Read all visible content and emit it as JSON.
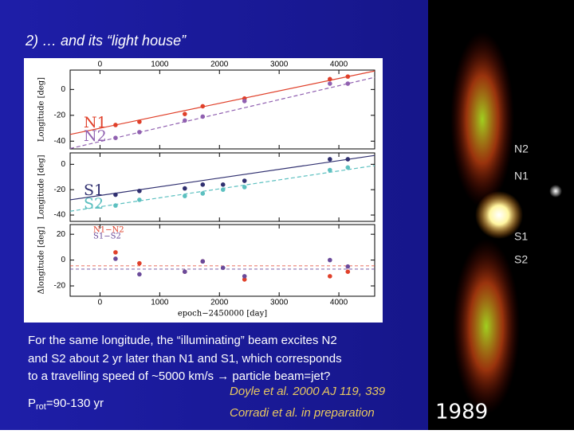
{
  "slide": {
    "title": "2) … and its “light house”",
    "body": [
      "For the same longitude, the  “illuminating” beam excites N2",
      "and S2 about 2 yr later than N1 and S1, which corresponds",
      "to a travelling speed of ~5000 km/s → particle beam=jet?"
    ],
    "references": [
      "Doyle et al. 2000 AJ 119, 339",
      "Corradi et al. in preparation"
    ],
    "period": {
      "symbol": "P",
      "subscript": "rot",
      "text": "=90-130 yr"
    },
    "image_labels": [
      "N2",
      "N1",
      "S1",
      "S2"
    ],
    "image_year": "1989"
  },
  "chart_data": [
    {
      "type": "scatter",
      "ylabel": "Longitude [deg]",
      "xlim": [
        -500,
        4600
      ],
      "xticks": [
        0,
        1000,
        2000,
        3000,
        4000
      ],
      "ylim": [
        -46,
        15
      ],
      "yticks": [
        0,
        -20,
        -40
      ],
      "series": [
        {
          "name": "N1",
          "color": "#e0402a",
          "x": [
            260,
            660,
            1420,
            1720,
            2420,
            3850,
            4150
          ],
          "values": [
            -27.5,
            -25,
            -19,
            -13,
            -7,
            8,
            10
          ],
          "fit": {
            "x": [
              -500,
              4600
            ],
            "values": [
              -34.8,
              14.3
            ]
          }
        },
        {
          "name": "N2",
          "color": "#9060b0",
          "x": [
            260,
            660,
            1420,
            1720,
            2420,
            3850,
            4150
          ],
          "values": [
            -37.5,
            -33,
            -24,
            -21,
            -9,
            4.5,
            4.5
          ],
          "fit": {
            "x": [
              -500,
              4600
            ],
            "values": [
              -45.7,
              9.4
            ]
          }
        }
      ]
    },
    {
      "type": "scatter",
      "ylabel": "Longitude [deg]",
      "xlim": [
        -500,
        4600
      ],
      "xticks": [
        0,
        1000,
        2000,
        3000,
        4000
      ],
      "ylim": [
        -45,
        9
      ],
      "yticks": [
        0,
        -20,
        -40
      ],
      "series": [
        {
          "name": "S1",
          "color": "#303070",
          "x": [
            260,
            660,
            1420,
            1720,
            2060,
            2420,
            3850,
            4150
          ],
          "values": [
            -24,
            -21,
            -19,
            -16,
            -16,
            -13,
            4,
            4
          ],
          "fit": {
            "x": [
              -500,
              4600
            ],
            "values": [
              -28,
              7
            ]
          }
        },
        {
          "name": "S2",
          "color": "#5cc0c0",
          "x": [
            260,
            660,
            1420,
            1720,
            2060,
            2420,
            3850,
            4150
          ],
          "values": [
            -32.5,
            -28,
            -25,
            -23,
            -20,
            -18,
            -4.5,
            -2.5
          ],
          "fit": {
            "x": [
              -500,
              4600
            ],
            "values": [
              -37,
              -1
            ]
          }
        }
      ]
    },
    {
      "type": "scatter",
      "ylabel": "Δlongitude [deg]",
      "xlabel": "epoch−2450000 [day]",
      "xlim": [
        -500,
        4600
      ],
      "xticks": [
        0,
        1000,
        2000,
        3000,
        4000
      ],
      "ylim": [
        -28,
        27.5
      ],
      "yticks": [
        20,
        0,
        -20
      ],
      "series": [
        {
          "name": "N1−N2",
          "color": "#e0402a",
          "x": [
            260,
            660,
            1420,
            1720,
            2420,
            3850,
            4150
          ],
          "values": [
            6,
            -2.5,
            -9,
            -1,
            -15,
            -12.5,
            -9
          ],
          "level": -4.5
        },
        {
          "name": "S1−S2",
          "color": "#6a4a9a",
          "x": [
            260,
            660,
            1420,
            1720,
            2060,
            2420,
            3850,
            4150
          ],
          "values": [
            1,
            -11,
            -9,
            -1,
            -6,
            -12.5,
            0,
            -5
          ],
          "level": -7
        }
      ]
    }
  ]
}
